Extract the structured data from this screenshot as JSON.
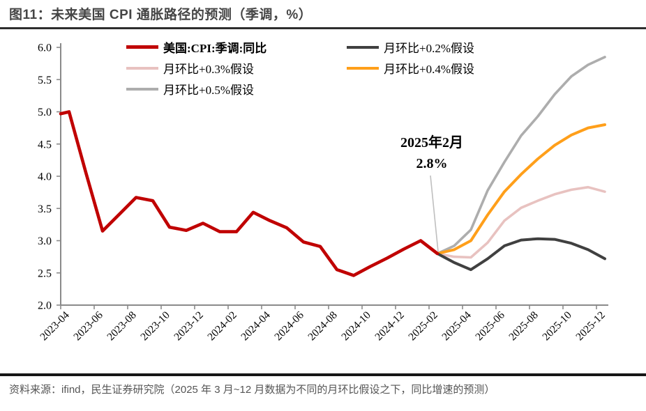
{
  "title": "图11：未来美国 CPI 通胀路径的预测（季调，%）",
  "annotation": {
    "line1": "2025年2月",
    "line2": "2.8%"
  },
  "footer": {
    "source": "资料来源：ifind，民生证券研究院（2025 年 3 月~12 月数据为不同的月环比假设之下，同比增速的预测）"
  },
  "legend": [
    {
      "key": "cpi-actual",
      "label": "美国:CPI:季调:同比",
      "color": "#C00000",
      "bold": true
    },
    {
      "key": "mom-02",
      "label": "月环比+0.2%假设",
      "color": "#404040",
      "bold": false
    },
    {
      "key": "mom-03",
      "label": "月环比+0.3%假设",
      "color": "#E8C2C0",
      "bold": false
    },
    {
      "key": "mom-04",
      "label": "月环比+0.4%假设",
      "color": "#FF9F1A",
      "bold": false
    },
    {
      "key": "mom-05",
      "label": "月环比+0.5%假设",
      "color": "#ADADAD",
      "bold": false
    }
  ],
  "chart_data": {
    "type": "line",
    "title": "未来美国 CPI 通胀路径的预测（季调，%）",
    "ylim": [
      2.0,
      6.0
    ],
    "yticks": [
      2.0,
      2.5,
      3.0,
      3.5,
      4.0,
      4.5,
      5.0,
      5.5,
      6.0
    ],
    "ytick_labels": [
      "2.0",
      "2.5",
      "3.0",
      "3.5",
      "4.0",
      "4.5",
      "5.0",
      "5.5",
      "6.0"
    ],
    "x_tick_labels": [
      "2023-04",
      "2023-06",
      "2023-08",
      "2023-10",
      "2023-12",
      "2024-02",
      "2024-04",
      "2024-06",
      "2024-08",
      "2024-10",
      "2024-12",
      "2025-02",
      "2025-04",
      "2025-06",
      "2025-08",
      "2025-10",
      "2025-12"
    ],
    "grid": false,
    "legend_position": "top",
    "axis_color": "#8a8a8a",
    "annotation": {
      "text": "2025年2月 2.8%",
      "at_x_label": "2025-02",
      "value": 2.8,
      "leader_color": "#BFBFBF"
    },
    "series": [
      {
        "key": "mom-05",
        "name": "月环比+0.5%假设",
        "color": "#ADADAD",
        "width": 3.6,
        "x": [
          22,
          23,
          24,
          25,
          26,
          27,
          28,
          29,
          30,
          31,
          32
        ],
        "values": [
          2.8,
          2.92,
          3.17,
          3.78,
          4.22,
          4.63,
          4.93,
          5.27,
          5.55,
          5.73,
          5.85
        ]
      },
      {
        "key": "mom-03",
        "name": "月环比+0.3%假设",
        "color": "#E8C2C0",
        "width": 3.6,
        "x": [
          22,
          23,
          24,
          25,
          26,
          27,
          28,
          29,
          30,
          31,
          32
        ],
        "values": [
          2.8,
          2.75,
          2.74,
          2.97,
          3.31,
          3.51,
          3.62,
          3.72,
          3.79,
          3.83,
          3.76
        ]
      },
      {
        "key": "mom-04",
        "name": "月环比+0.4%假设",
        "color": "#FF9F1A",
        "width": 4,
        "x": [
          22,
          23,
          24,
          25,
          26,
          27,
          28,
          29,
          30,
          31,
          32
        ],
        "values": [
          2.8,
          2.86,
          3.0,
          3.4,
          3.76,
          4.03,
          4.27,
          4.48,
          4.64,
          4.75,
          4.8
        ]
      },
      {
        "key": "mom-02",
        "name": "月环比+0.2%假设",
        "color": "#404040",
        "width": 4,
        "x": [
          22,
          23,
          24,
          25,
          26,
          27,
          28,
          29,
          30,
          31,
          32
        ],
        "values": [
          2.8,
          2.66,
          2.55,
          2.72,
          2.92,
          3.01,
          3.03,
          3.02,
          2.96,
          2.86,
          2.72
        ]
      },
      {
        "key": "cpi-actual",
        "name": "美国:CPI:季调:同比",
        "color": "#C00000",
        "width": 4.6,
        "x": [
          -0.5,
          0,
          1,
          2,
          3,
          4,
          5,
          6,
          7,
          8,
          9,
          10,
          11,
          12,
          13,
          14,
          15,
          16,
          17,
          18,
          19,
          20,
          21,
          22
        ],
        "values": [
          4.97,
          5.0,
          4.06,
          3.15,
          3.41,
          3.67,
          3.62,
          3.21,
          3.16,
          3.27,
          3.14,
          3.14,
          3.44,
          3.31,
          3.2,
          2.98,
          2.91,
          2.55,
          2.46,
          2.6,
          2.73,
          2.87,
          3.0,
          2.8
        ]
      }
    ]
  }
}
